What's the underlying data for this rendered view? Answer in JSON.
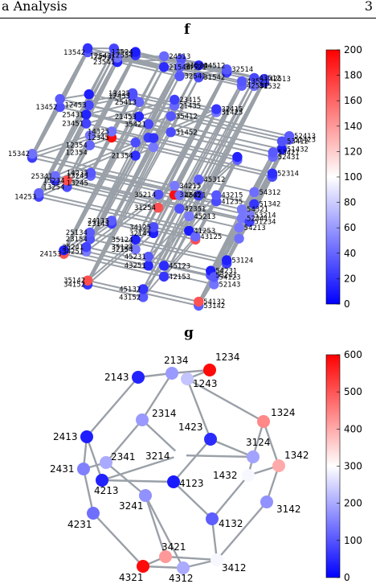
{
  "page": {
    "header_left": "a Analysis",
    "header_right": "3"
  },
  "panel_f": {
    "label": "f",
    "colorbar": {
      "min": 0,
      "max": 200,
      "ticks": [
        0,
        20,
        40,
        60,
        80,
        100,
        120,
        140,
        160,
        180,
        200
      ]
    },
    "visible_labels": [
      "54321",
      "54312",
      "45321",
      "53421",
      "45312",
      "54231",
      "45231",
      "54213",
      "45213",
      "53412",
      "54132",
      "35421",
      "53241",
      "45132",
      "54123",
      "52431",
      "45123",
      "34521",
      "35412",
      "34512",
      "52341",
      "53142",
      "43521",
      "25431",
      "43512",
      "35241",
      "53214",
      "51432",
      "52413",
      "25341",
      "52314",
      "24531",
      "35142",
      "43251",
      "43152",
      "35214",
      "53124",
      "42531",
      "25413",
      "34251",
      "42351",
      "51423",
      "32541",
      "23541",
      "52143",
      "24513",
      "34152",
      "35124",
      "42513",
      "51342",
      "24153",
      "34215",
      "43215",
      "23451",
      "41532",
      "31452",
      "35124",
      "21453",
      "41253",
      "43125",
      "32415",
      "12534",
      "25134",
      "34125",
      "32514",
      "51234",
      "32154",
      "42153",
      "31542",
      "13452",
      "15234",
      "21543",
      "13542",
      "13524",
      "23415",
      "41235",
      "31425",
      "15342",
      "13425",
      "14253",
      "24135",
      "21534",
      "12354",
      "31254",
      "32145",
      "14235",
      "23154",
      "12543",
      "31245",
      "23145",
      "14325",
      "12453",
      "21435",
      "13254",
      "12435",
      "13245",
      "21354",
      "12345",
      "12354",
      "13245"
    ]
  },
  "panel_g": {
    "label": "g",
    "colorbar": {
      "min": 0,
      "max": 600,
      "ticks": [
        0,
        100,
        200,
        300,
        400,
        500,
        600
      ]
    },
    "nodes": [
      {
        "id": "2143",
        "value": 40
      },
      {
        "id": "2134",
        "value": 180
      },
      {
        "id": "1234",
        "value": 590
      },
      {
        "id": "1243",
        "value": 230
      },
      {
        "id": "2314",
        "value": 180
      },
      {
        "id": "1324",
        "value": 440
      },
      {
        "id": "2413",
        "value": 35
      },
      {
        "id": "1423",
        "value": 50
      },
      {
        "id": "3124",
        "value": 190
      },
      {
        "id": "2341",
        "value": 200
      },
      {
        "id": "3214",
        "value": 300
      },
      {
        "id": "1342",
        "value": 400
      },
      {
        "id": "2431",
        "value": 150
      },
      {
        "id": "1432",
        "value": 290
      },
      {
        "id": "4213",
        "value": 40
      },
      {
        "id": "4123",
        "value": 30
      },
      {
        "id": "3241",
        "value": 170
      },
      {
        "id": "3142",
        "value": 170
      },
      {
        "id": "4132",
        "value": 110
      },
      {
        "id": "4231",
        "value": 130
      },
      {
        "id": "3421",
        "value": 420
      },
      {
        "id": "3412",
        "value": 290
      },
      {
        "id": "4321",
        "value": 590
      },
      {
        "id": "4312",
        "value": 200
      }
    ],
    "edges": [
      [
        "2143",
        "2134"
      ],
      [
        "2134",
        "1234"
      ],
      [
        "1234",
        "1243"
      ],
      [
        "2134",
        "2314"
      ],
      [
        "2143",
        "2413"
      ],
      [
        "1243",
        "1423"
      ],
      [
        "1243",
        "1324"
      ],
      [
        "2314",
        "2341"
      ],
      [
        "2314",
        "3214"
      ],
      [
        "1423",
        "3124"
      ],
      [
        "1423",
        "4123"
      ],
      [
        "1324",
        "3124"
      ],
      [
        "1324",
        "1342"
      ],
      [
        "2413",
        "2431"
      ],
      [
        "2413",
        "4213"
      ],
      [
        "2341",
        "2431"
      ],
      [
        "2341",
        "3241"
      ],
      [
        "3214",
        "3124"
      ],
      [
        "3214",
        "4213"
      ],
      [
        "3124",
        "1432"
      ],
      [
        "1432",
        "1342"
      ],
      [
        "1432",
        "4132"
      ],
      [
        "1342",
        "3142"
      ],
      [
        "4123",
        "4213"
      ],
      [
        "4123",
        "4132"
      ],
      [
        "2431",
        "4231"
      ],
      [
        "4231",
        "4321"
      ],
      [
        "3241",
        "3421"
      ],
      [
        "4132",
        "3412"
      ],
      [
        "3142",
        "3412"
      ],
      [
        "3421",
        "4321"
      ],
      [
        "3421",
        "3412"
      ],
      [
        "4321",
        "4312"
      ],
      [
        "4312",
        "3412"
      ],
      [
        "3241",
        "4312"
      ]
    ]
  },
  "colors": {
    "cmap_low": "#0000ff",
    "cmap_mid": "#ffffff",
    "cmap_high": "#ff0000",
    "edge": "#9aa0a8"
  }
}
